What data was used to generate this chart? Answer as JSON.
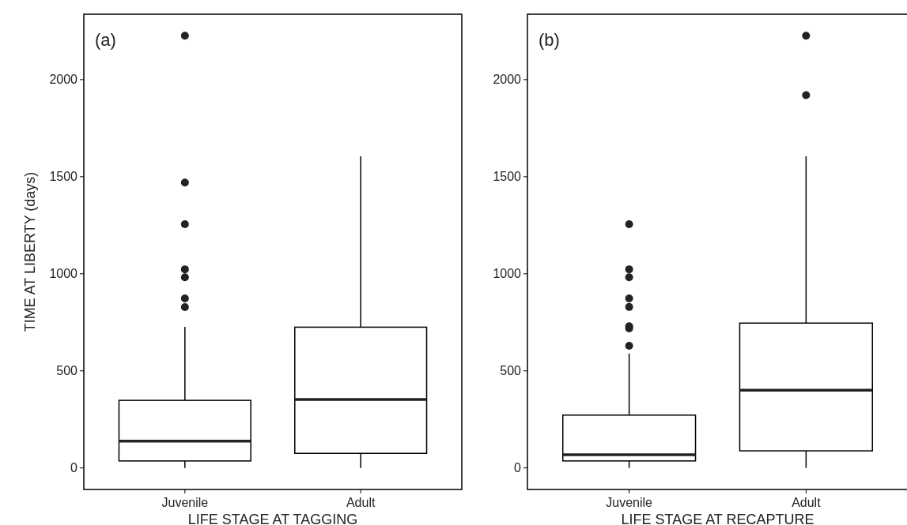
{
  "chart_data": [
    {
      "type": "box",
      "ylabel": "TIME AT LIBERTY (days)",
      "xlabel": "LIFE STAGE AT TAGGING",
      "categories": [
        "Juvenile",
        "Adult"
      ],
      "ylim": [
        -111,
        2337
      ],
      "yticks": [
        0,
        500,
        1000,
        1500,
        2000
      ],
      "grid": false,
      "annotations": [
        "(a)"
      ],
      "boxes": [
        {
          "low": 0,
          "q1": 36,
          "median": 138,
          "q3": 348,
          "high": 727,
          "outliers": [
            2226,
            1470,
            1255,
            1023,
            982,
            873,
            828
          ]
        },
        {
          "low": 0,
          "q1": 75,
          "median": 353,
          "q3": 725,
          "high": 1605
        }
      ]
    },
    {
      "type": "box",
      "xlabel": "LIFE STAGE AT RECAPTURE",
      "categories": [
        "Juvenile",
        "Adult"
      ],
      "ylim": [
        -111,
        2337
      ],
      "yticks": [
        0,
        500,
        1000,
        1500,
        2000
      ],
      "grid": false,
      "annotations": [
        "(b)"
      ],
      "boxes": [
        {
          "low": 0,
          "q1": 36,
          "median": 68,
          "q3": 272,
          "high": 589,
          "outliers": [
            1255,
            1023,
            982,
            873,
            829,
            730,
            719,
            629
          ]
        },
        {
          "low": 0,
          "q1": 88,
          "median": 400,
          "q3": 746,
          "high": 1605,
          "outliers": [
            2226,
            1920
          ]
        }
      ]
    }
  ]
}
